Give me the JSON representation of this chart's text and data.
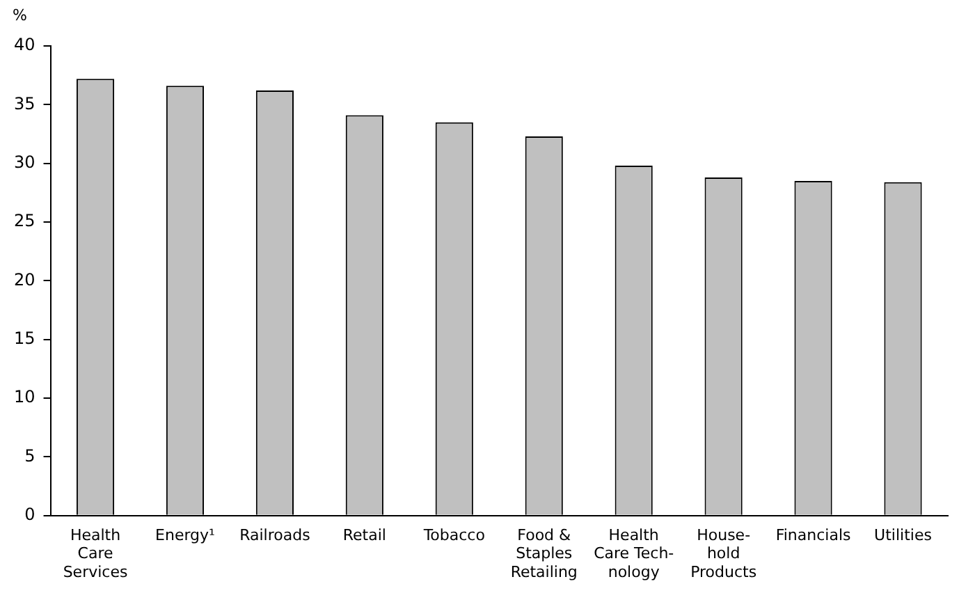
{
  "chart_data": {
    "type": "bar",
    "ylabel": "%",
    "categories": [
      "Health\nCare\nServices",
      "Energy¹",
      "Railroads",
      "Retail",
      "Tobacco",
      "Food &\nStaples\nRetailing",
      "Health\nCare Tech-\nnology",
      "House-\nhold\nProducts",
      "Financials",
      "Utilities"
    ],
    "values": [
      37.2,
      36.6,
      36.2,
      34.1,
      33.5,
      32.3,
      29.8,
      28.8,
      28.5,
      28.4
    ],
    "color": "#c0c0c0",
    "ylim": [
      0,
      40
    ],
    "yticks": [
      0,
      5,
      10,
      15,
      20,
      25,
      30,
      35,
      40
    ],
    "grid": false,
    "legend": false
  }
}
